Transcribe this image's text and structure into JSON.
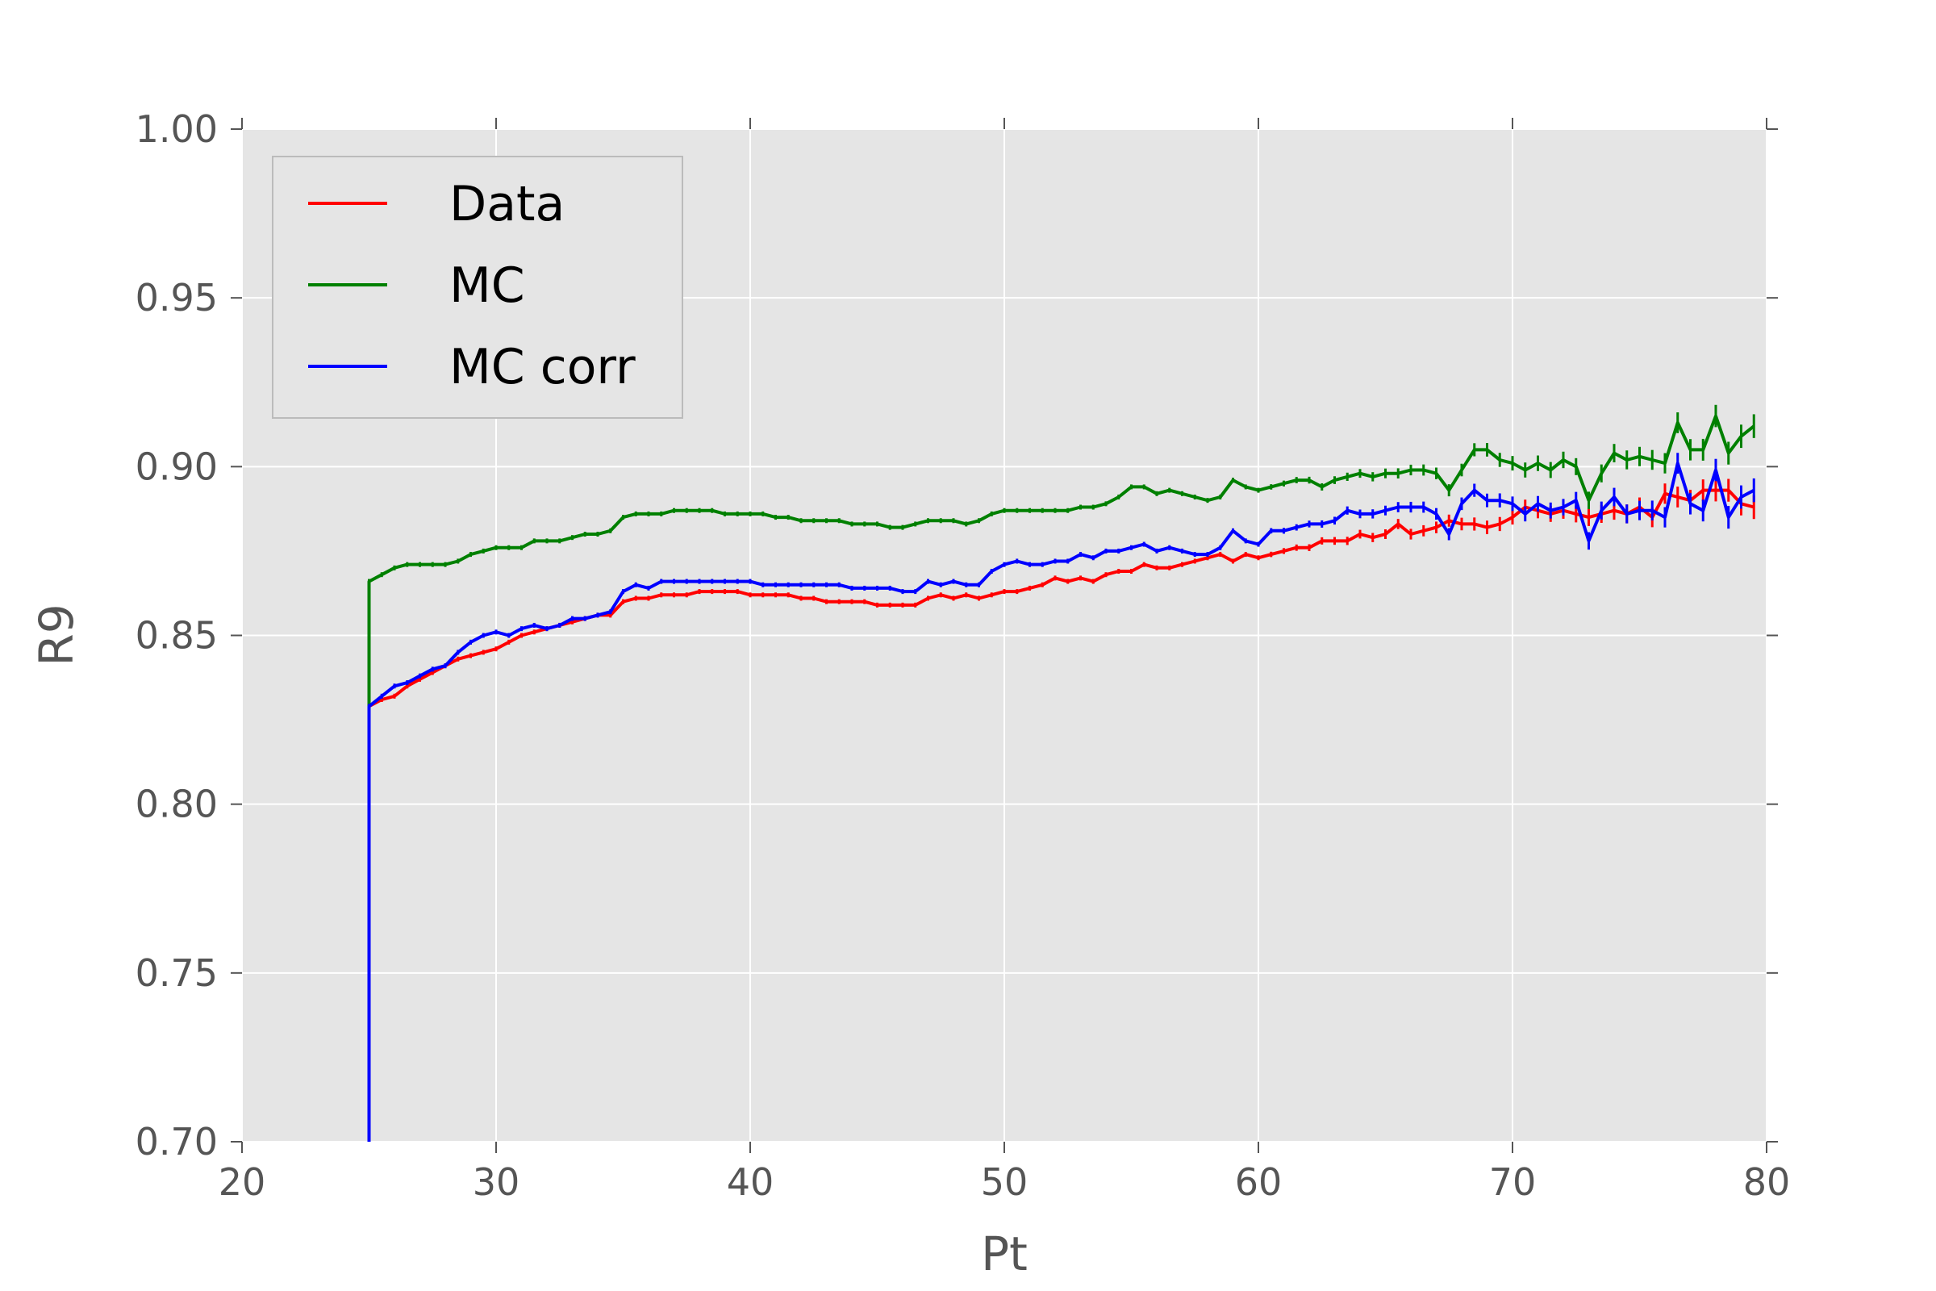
{
  "chart_data": {
    "type": "line",
    "title": "",
    "xlabel": "Pt",
    "ylabel": "R9",
    "xlim": [
      20,
      80
    ],
    "ylim": [
      0.7,
      1.0
    ],
    "xticks": [
      "20",
      "30",
      "40",
      "50",
      "60",
      "70",
      "80"
    ],
    "yticks": [
      "0.70",
      "0.75",
      "0.80",
      "0.85",
      "0.90",
      "0.95",
      "1.00"
    ],
    "grid": true,
    "legend_position": "top-left",
    "x": [
      25.0,
      25.5,
      26.0,
      26.5,
      27.0,
      27.5,
      28.0,
      28.5,
      29.0,
      29.5,
      30.0,
      30.5,
      31.0,
      31.5,
      32.0,
      32.5,
      33.0,
      33.5,
      34.0,
      34.5,
      35.0,
      35.5,
      36.0,
      36.5,
      37.0,
      37.5,
      38.0,
      38.5,
      39.0,
      39.5,
      40.0,
      40.5,
      41.0,
      41.5,
      42.0,
      42.5,
      43.0,
      43.5,
      44.0,
      44.5,
      45.0,
      45.5,
      46.0,
      46.5,
      47.0,
      47.5,
      48.0,
      48.5,
      49.0,
      49.5,
      50.0,
      50.5,
      51.0,
      51.5,
      52.0,
      52.5,
      53.0,
      53.5,
      54.0,
      54.5,
      55.0,
      55.5,
      56.0,
      56.5,
      57.0,
      57.5,
      58.0,
      58.5,
      59.0,
      59.5,
      60.0,
      60.5,
      61.0,
      61.5,
      62.0,
      62.5,
      63.0,
      63.5,
      64.0,
      64.5,
      65.0,
      65.5,
      66.0,
      66.5,
      67.0,
      67.5,
      68.0,
      68.5,
      69.0,
      69.5,
      70.0,
      70.5,
      71.0,
      71.5,
      72.0,
      72.5,
      73.0,
      73.5,
      74.0,
      74.5,
      75.0,
      75.5,
      76.0,
      76.5,
      77.0,
      77.5,
      78.0,
      78.5,
      79.0,
      79.5
    ],
    "series": [
      {
        "name": "Data",
        "color": "#ff0000",
        "start": [
          25.0,
          0.7
        ],
        "values": [
          0.829,
          0.831,
          0.832,
          0.835,
          0.837,
          0.839,
          0.841,
          0.843,
          0.844,
          0.845,
          0.846,
          0.848,
          0.85,
          0.851,
          0.852,
          0.853,
          0.854,
          0.855,
          0.856,
          0.856,
          0.86,
          0.861,
          0.861,
          0.862,
          0.862,
          0.862,
          0.863,
          0.863,
          0.863,
          0.863,
          0.862,
          0.862,
          0.862,
          0.862,
          0.861,
          0.861,
          0.86,
          0.86,
          0.86,
          0.86,
          0.859,
          0.859,
          0.859,
          0.859,
          0.861,
          0.862,
          0.861,
          0.862,
          0.861,
          0.862,
          0.863,
          0.863,
          0.864,
          0.865,
          0.867,
          0.866,
          0.867,
          0.866,
          0.868,
          0.869,
          0.869,
          0.871,
          0.87,
          0.87,
          0.871,
          0.872,
          0.873,
          0.874,
          0.872,
          0.874,
          0.873,
          0.874,
          0.875,
          0.876,
          0.876,
          0.878,
          0.878,
          0.878,
          0.88,
          0.879,
          0.88,
          0.883,
          0.88,
          0.881,
          0.882,
          0.884,
          0.883,
          0.883,
          0.882,
          0.883,
          0.885,
          0.888,
          0.887,
          0.886,
          0.887,
          0.886,
          0.885,
          0.886,
          0.887,
          0.886,
          0.888,
          0.885,
          0.892,
          0.891,
          0.89,
          0.893,
          0.893,
          0.893,
          0.889,
          0.888
        ]
      },
      {
        "name": "MC",
        "color": "#008000",
        "start": [
          25.0,
          0.829
        ],
        "values": [
          0.866,
          0.868,
          0.87,
          0.871,
          0.871,
          0.871,
          0.871,
          0.872,
          0.874,
          0.875,
          0.876,
          0.876,
          0.876,
          0.878,
          0.878,
          0.878,
          0.879,
          0.88,
          0.88,
          0.881,
          0.885,
          0.886,
          0.886,
          0.886,
          0.887,
          0.887,
          0.887,
          0.887,
          0.886,
          0.886,
          0.886,
          0.886,
          0.885,
          0.885,
          0.884,
          0.884,
          0.884,
          0.884,
          0.883,
          0.883,
          0.883,
          0.882,
          0.882,
          0.883,
          0.884,
          0.884,
          0.884,
          0.883,
          0.884,
          0.886,
          0.887,
          0.887,
          0.887,
          0.887,
          0.887,
          0.887,
          0.888,
          0.888,
          0.889,
          0.891,
          0.894,
          0.894,
          0.892,
          0.893,
          0.892,
          0.891,
          0.89,
          0.891,
          0.896,
          0.894,
          0.893,
          0.894,
          0.895,
          0.896,
          0.896,
          0.894,
          0.896,
          0.897,
          0.898,
          0.897,
          0.898,
          0.898,
          0.899,
          0.899,
          0.898,
          0.893,
          0.899,
          0.905,
          0.905,
          0.902,
          0.901,
          0.899,
          0.901,
          0.899,
          0.902,
          0.9,
          0.89,
          0.898,
          0.904,
          0.902,
          0.903,
          0.902,
          0.901,
          0.913,
          0.905,
          0.905,
          0.915,
          0.904,
          0.909,
          0.912
        ]
      },
      {
        "name": "MC corr",
        "color": "#0000ff",
        "start": [
          25.0,
          0.7
        ],
        "values": [
          0.829,
          0.832,
          0.835,
          0.836,
          0.838,
          0.84,
          0.841,
          0.845,
          0.848,
          0.85,
          0.851,
          0.85,
          0.852,
          0.853,
          0.852,
          0.853,
          0.855,
          0.855,
          0.856,
          0.857,
          0.863,
          0.865,
          0.864,
          0.866,
          0.866,
          0.866,
          0.866,
          0.866,
          0.866,
          0.866,
          0.866,
          0.865,
          0.865,
          0.865,
          0.865,
          0.865,
          0.865,
          0.865,
          0.864,
          0.864,
          0.864,
          0.864,
          0.863,
          0.863,
          0.866,
          0.865,
          0.866,
          0.865,
          0.865,
          0.869,
          0.871,
          0.872,
          0.871,
          0.871,
          0.872,
          0.872,
          0.874,
          0.873,
          0.875,
          0.875,
          0.876,
          0.877,
          0.875,
          0.876,
          0.875,
          0.874,
          0.874,
          0.876,
          0.881,
          0.878,
          0.877,
          0.881,
          0.881,
          0.882,
          0.883,
          0.883,
          0.884,
          0.887,
          0.886,
          0.886,
          0.887,
          0.888,
          0.888,
          0.888,
          0.886,
          0.88,
          0.889,
          0.893,
          0.89,
          0.89,
          0.889,
          0.886,
          0.889,
          0.887,
          0.888,
          0.89,
          0.878,
          0.887,
          0.891,
          0.886,
          0.887,
          0.887,
          0.885,
          0.901,
          0.889,
          0.887,
          0.899,
          0.885,
          0.891,
          0.893
        ]
      }
    ]
  }
}
